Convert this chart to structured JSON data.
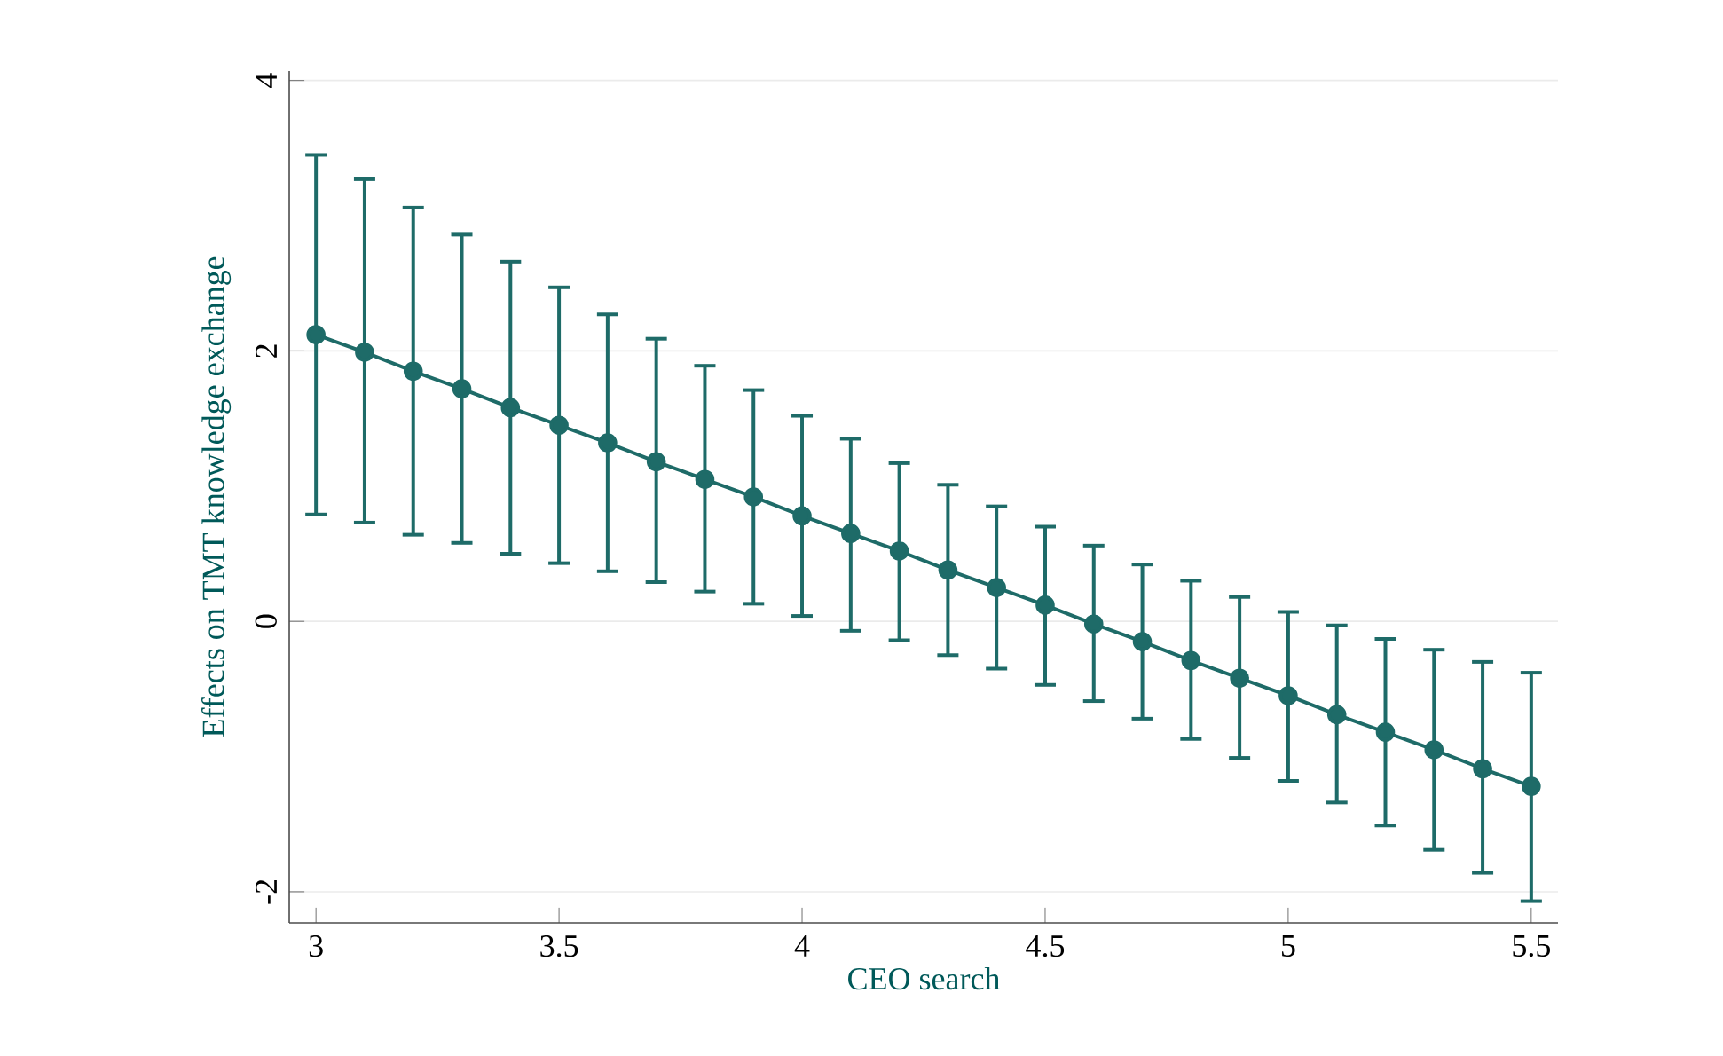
{
  "chart_data": {
    "type": "line",
    "xlabel": "CEO search",
    "ylabel": "Effects on TMT knowledge exchange",
    "x": [
      3,
      3.1,
      3.2,
      3.3,
      3.4,
      3.5,
      3.6,
      3.7,
      3.8,
      3.9,
      4,
      4.1,
      4.2,
      4.3,
      4.4,
      4.5,
      4.6,
      4.7,
      4.8,
      4.9,
      5,
      5.1,
      5.2,
      5.3,
      5.4,
      5.5
    ],
    "series": [
      {
        "color": "#1e6b68",
        "values": [
          2.12,
          1.99,
          1.85,
          1.72,
          1.58,
          1.45,
          1.32,
          1.18,
          1.05,
          0.92,
          0.78,
          0.65,
          0.52,
          0.38,
          0.25,
          0.12,
          -0.02,
          -0.15,
          -0.29,
          -0.42,
          -0.55,
          -0.69,
          -0.82,
          -0.95,
          -1.09,
          -1.22
        ],
        "errors": [
          [
            0.79,
            3.45
          ],
          [
            0.73,
            3.27
          ],
          [
            0.64,
            3.06
          ],
          [
            0.58,
            2.86
          ],
          [
            0.5,
            2.66
          ],
          [
            0.43,
            2.47
          ],
          [
            0.37,
            2.27
          ],
          [
            0.29,
            2.09
          ],
          [
            0.22,
            1.89
          ],
          [
            0.13,
            1.71
          ],
          [
            0.04,
            1.52
          ],
          [
            -0.07,
            1.35
          ],
          [
            -0.14,
            1.17
          ],
          [
            -0.25,
            1.01
          ],
          [
            -0.35,
            0.85
          ],
          [
            -0.47,
            0.7
          ],
          [
            -0.59,
            0.56
          ],
          [
            -0.72,
            0.42
          ],
          [
            -0.87,
            0.3
          ],
          [
            -1.01,
            0.18
          ],
          [
            -1.18,
            0.07
          ],
          [
            -1.34,
            -0.03
          ],
          [
            -1.51,
            -0.13
          ],
          [
            -1.69,
            -0.21
          ],
          [
            -1.86,
            -0.3
          ],
          [
            -2.07,
            -0.38
          ]
        ]
      }
    ],
    "xlim": [
      2.945,
      5.555
    ],
    "ylim": [
      -2.23,
      4.07
    ],
    "xticks": [
      3,
      3.5,
      4,
      4.5,
      5,
      5.5
    ],
    "yticks": [
      -2,
      0,
      2,
      4
    ],
    "grid": "y",
    "marker": "circle",
    "line_style": "solid"
  }
}
